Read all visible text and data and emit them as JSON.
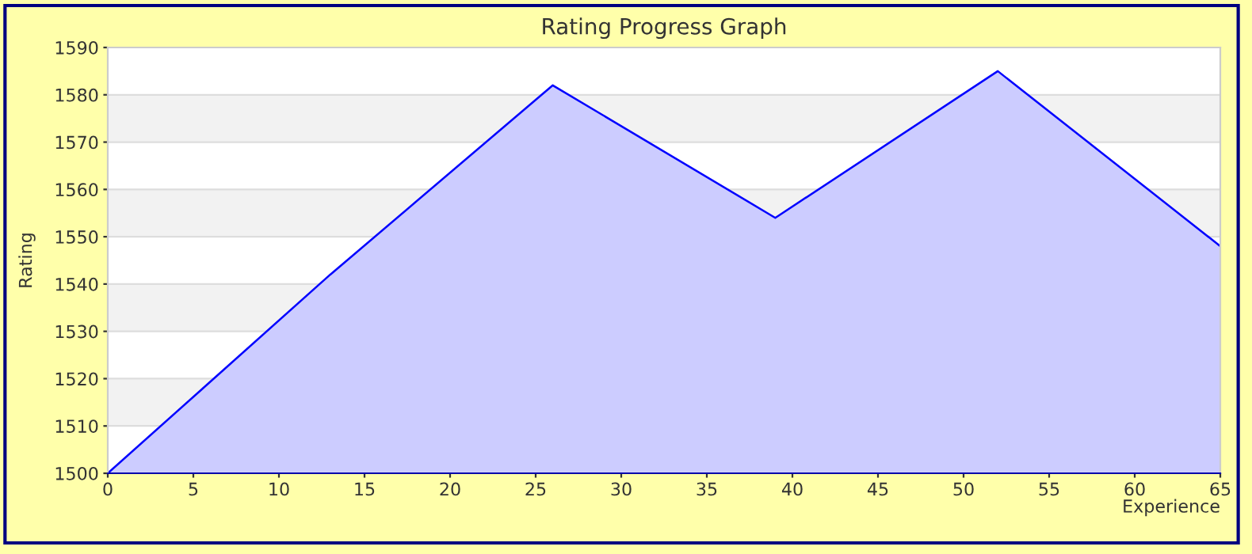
{
  "chart_data": {
    "type": "area",
    "title": "Rating Progress Graph",
    "xlabel": "Experience",
    "ylabel": "Rating",
    "x": [
      0,
      13,
      26,
      39,
      52,
      65
    ],
    "series": [
      {
        "color": "#0000ff",
        "values": [
          1500,
          1542,
          1582,
          1554,
          1585,
          1548
        ]
      }
    ],
    "xlim": [
      0,
      65
    ],
    "xticks": [
      0,
      5,
      10,
      15,
      20,
      25,
      30,
      35,
      40,
      45,
      50,
      55,
      60,
      65
    ],
    "ylim": [
      1500,
      1590
    ],
    "yticks": [
      1500,
      1510,
      1520,
      1530,
      1540,
      1550,
      1560,
      1570,
      1580,
      1590
    ],
    "grid": "y",
    "marker": "none",
    "line_style": "solid",
    "legend": false
  }
}
